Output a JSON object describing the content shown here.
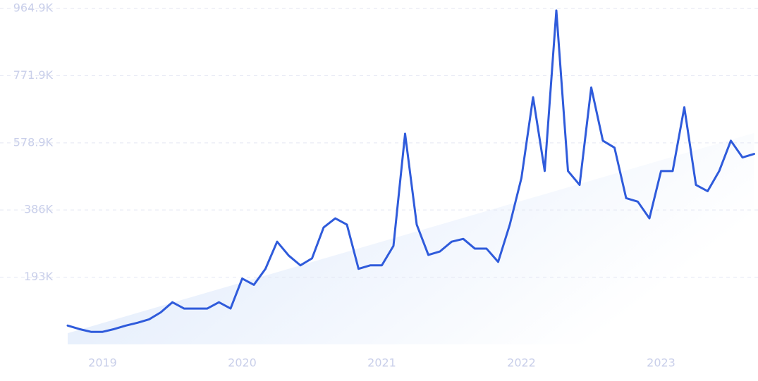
{
  "chart_data": {
    "type": "line",
    "categories": [
      null,
      null,
      null,
      "2019",
      null,
      null,
      null,
      null,
      null,
      null,
      null,
      null,
      null,
      null,
      null,
      "2020",
      null,
      null,
      null,
      null,
      null,
      null,
      null,
      null,
      null,
      null,
      null,
      "2021",
      null,
      null,
      null,
      null,
      null,
      null,
      null,
      null,
      null,
      null,
      null,
      "2022",
      null,
      null,
      null,
      null,
      null,
      null,
      null,
      null,
      null,
      null,
      null,
      "2023",
      null,
      null,
      null,
      null,
      null,
      null,
      null,
      null
    ],
    "values": [
      54000,
      44000,
      36000,
      36000,
      44000,
      54000,
      62000,
      72000,
      92000,
      121000,
      103000,
      103000,
      103000,
      121000,
      103000,
      189000,
      171000,
      217000,
      295000,
      255000,
      227000,
      247000,
      336000,
      362000,
      344000,
      217000,
      227000,
      227000,
      283000,
      605000,
      344000,
      257000,
      267000,
      295000,
      303000,
      275000,
      275000,
      237000,
      344000,
      478000,
      710000,
      498000,
      959000,
      498000,
      458000,
      738000,
      585000,
      565000,
      420000,
      410000,
      362000,
      498000,
      498000,
      681000,
      458000,
      440000,
      498000,
      585000,
      537000,
      547000
    ],
    "color": "#2f5bdb",
    "trend_values": [
      32000,
      607000
    ],
    "trend_color": "#dce8fb",
    "ylim": [
      0,
      964900
    ],
    "yticks": [
      {
        "value": 193000,
        "label": "193K"
      },
      {
        "value": 386000,
        "label": "386K"
      },
      {
        "value": 578900,
        "label": "578.9K"
      },
      {
        "value": 771900,
        "label": "771.9K"
      },
      {
        "value": 964900,
        "label": "964.9K"
      }
    ],
    "grid": true
  }
}
